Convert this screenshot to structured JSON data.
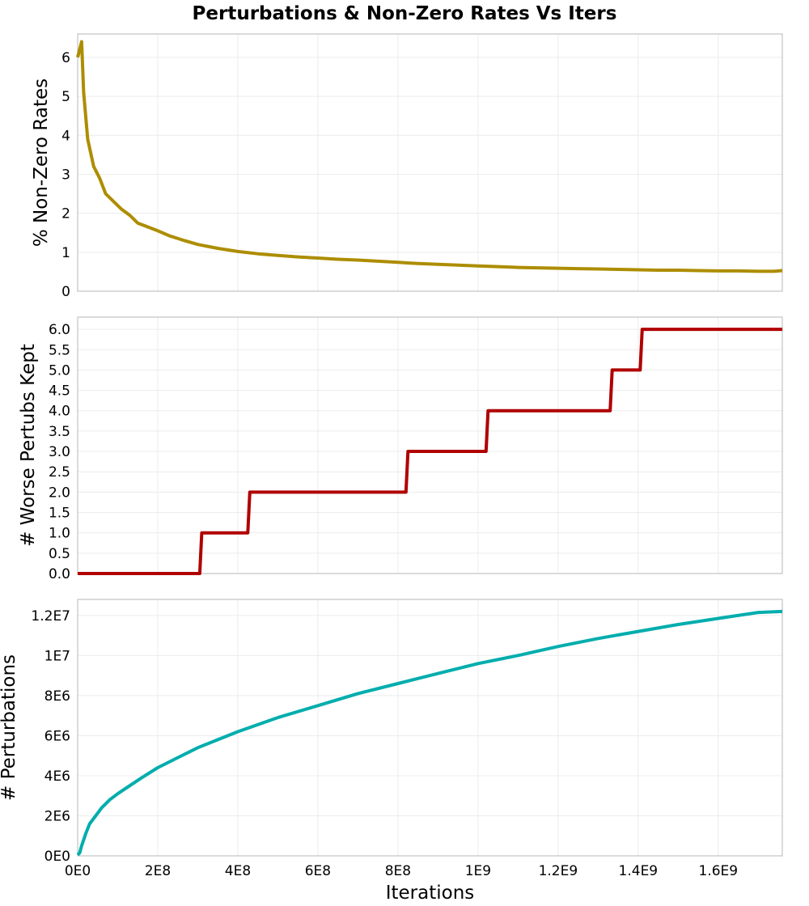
{
  "chart_data": [
    {
      "type": "line",
      "title": "Perturbations & Non-Zero Rates Vs Iters",
      "ylabel": "% Non-Zero Rates",
      "xlim": [
        0,
        1760000000
      ],
      "ylim": [
        0,
        6.6
      ],
      "grid": true,
      "x_ticks": [
        0,
        200000000,
        400000000,
        600000000,
        800000000,
        1000000000,
        1200000000,
        1400000000,
        1600000000
      ],
      "y_ticks": [
        0,
        1,
        2,
        3,
        4,
        5,
        6
      ],
      "y_tick_labels": [
        "0",
        "1",
        "2",
        "3",
        "4",
        "5",
        "6"
      ],
      "series": [
        {
          "color": "#ad8d00",
          "x": [
            0,
            10000000,
            15000000,
            25000000,
            40000000,
            55000000,
            70000000,
            90000000,
            110000000,
            130000000,
            150000000,
            175000000,
            200000000,
            230000000,
            260000000,
            300000000,
            350000000,
            400000000,
            450000000,
            500000000,
            550000000,
            600000000,
            650000000,
            700000000,
            750000000,
            800000000,
            850000000,
            900000000,
            950000000,
            1000000000,
            1050000000,
            1100000000,
            1150000000,
            1200000000,
            1250000000,
            1300000000,
            1350000000,
            1400000000,
            1450000000,
            1500000000,
            1550000000,
            1600000000,
            1650000000,
            1700000000,
            1740000000,
            1760000000
          ],
          "values": [
            6.0,
            6.4,
            5.1,
            3.9,
            3.2,
            2.9,
            2.5,
            2.3,
            2.1,
            1.95,
            1.75,
            1.65,
            1.55,
            1.42,
            1.32,
            1.2,
            1.1,
            1.02,
            0.96,
            0.92,
            0.88,
            0.85,
            0.82,
            0.8,
            0.77,
            0.74,
            0.71,
            0.69,
            0.67,
            0.65,
            0.63,
            0.61,
            0.6,
            0.59,
            0.58,
            0.57,
            0.56,
            0.55,
            0.54,
            0.54,
            0.53,
            0.52,
            0.52,
            0.51,
            0.51,
            0.53
          ]
        }
      ]
    },
    {
      "type": "line",
      "ylabel": "# Worse Pertubs Kept",
      "xlim": [
        0,
        1760000000
      ],
      "ylim": [
        0,
        6.3
      ],
      "grid": true,
      "x_ticks": [
        0,
        200000000,
        400000000,
        600000000,
        800000000,
        1000000000,
        1200000000,
        1400000000,
        1600000000
      ],
      "y_ticks": [
        0,
        0.5,
        1,
        1.5,
        2,
        2.5,
        3,
        3.5,
        4,
        4.5,
        5,
        5.5,
        6
      ],
      "y_tick_labels": [
        "0.0",
        "0.5",
        "1.0",
        "1.5",
        "2.0",
        "2.5",
        "3.0",
        "3.5",
        "4.0",
        "4.5",
        "5.0",
        "5.5",
        "6.0"
      ],
      "series": [
        {
          "color": "#b00000",
          "x": [
            0,
            305000000,
            310000000,
            425000000,
            430000000,
            820000000,
            825000000,
            1020000000,
            1025000000,
            1330000000,
            1335000000,
            1405000000,
            1410000000,
            1760000000
          ],
          "values": [
            0,
            0,
            1,
            1,
            2,
            2,
            3,
            3,
            4,
            4,
            5,
            5,
            6,
            6
          ]
        }
      ]
    },
    {
      "type": "line",
      "ylabel": "# Perturbations",
      "xlabel": "Iterations",
      "xlim": [
        0,
        1760000000
      ],
      "ylim": [
        0,
        12800000
      ],
      "grid": true,
      "x_ticks": [
        0,
        200000000,
        400000000,
        600000000,
        800000000,
        1000000000,
        1200000000,
        1400000000,
        1600000000
      ],
      "x_tick_labels": [
        "0E0",
        "2E8",
        "4E8",
        "6E8",
        "8E8",
        "1E9",
        "1.2E9",
        "1.4E9",
        "1.6E9"
      ],
      "y_ticks": [
        0,
        2000000,
        4000000,
        6000000,
        8000000,
        10000000,
        12000000
      ],
      "y_tick_labels": [
        "0E0",
        "2E6",
        "4E6",
        "6E6",
        "8E6",
        "1E7",
        "1.2E7"
      ],
      "series": [
        {
          "color": "#00adad",
          "x": [
            0,
            5000000,
            10000000,
            20000000,
            30000000,
            45000000,
            60000000,
            80000000,
            100000000,
            130000000,
            160000000,
            200000000,
            250000000,
            300000000,
            350000000,
            400000000,
            500000000,
            600000000,
            700000000,
            800000000,
            900000000,
            1000000000,
            1100000000,
            1200000000,
            1300000000,
            1400000000,
            1500000000,
            1600000000,
            1700000000,
            1760000000
          ],
          "values": [
            50000,
            150000,
            500000,
            1100000,
            1600000,
            2000000,
            2400000,
            2800000,
            3100000,
            3500000,
            3900000,
            4400000,
            4900000,
            5400000,
            5800000,
            6200000,
            6900000,
            7500000,
            8100000,
            8600000,
            9100000,
            9600000,
            10000000,
            10450000,
            10850000,
            11200000,
            11550000,
            11850000,
            12150000,
            12200000
          ]
        }
      ]
    }
  ]
}
